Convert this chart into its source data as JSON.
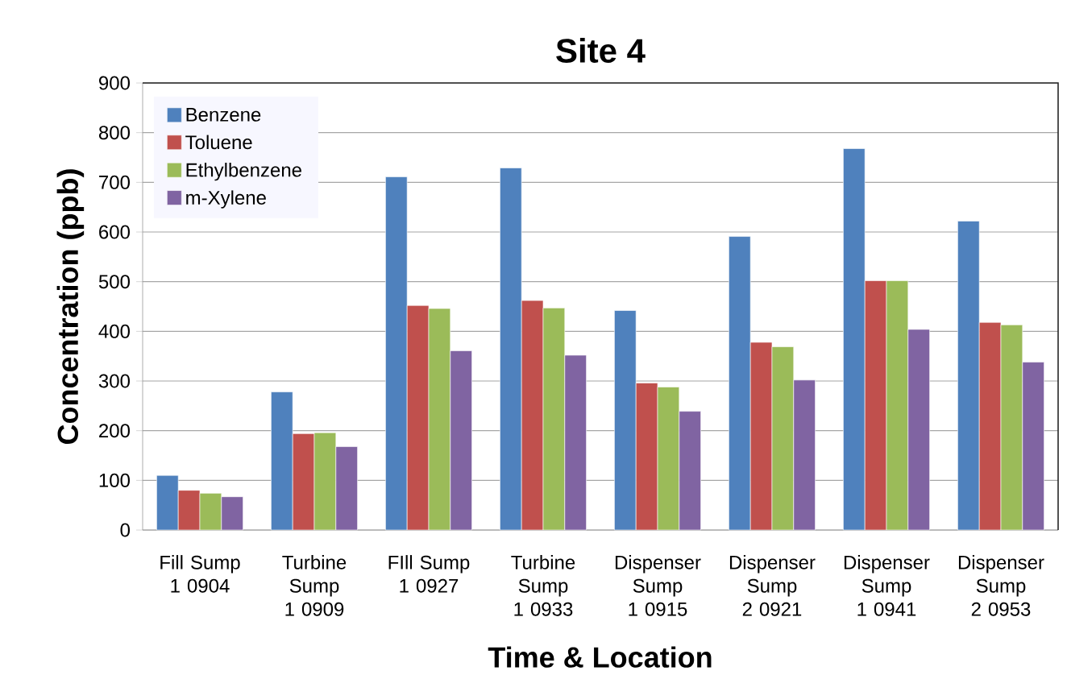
{
  "chart_data": {
    "type": "bar",
    "title": "Site 4",
    "xlabel": "Time & Location",
    "ylabel": "Concentration (ppb)",
    "categories": [
      "Fill Sump 1 0904",
      "Turbine Sump 1 0909",
      "FIll Sump 1 0927",
      "Turbine Sump 1 0933",
      "Dispenser Sump 1 0915",
      "Dispenser Sump 2 0921",
      "Dispenser Sump 1 0941",
      "Dispenser Sump 2 0953"
    ],
    "series": [
      {
        "name": "Benzene",
        "color": "#4f81bd",
        "values": [
          110,
          278,
          711,
          729,
          442,
          591,
          768,
          622
        ]
      },
      {
        "name": "Toluene",
        "color": "#c0504d",
        "values": [
          80,
          194,
          452,
          462,
          296,
          378,
          502,
          418
        ]
      },
      {
        "name": "Ethylbenzene",
        "color": "#9bbb59",
        "values": [
          74,
          196,
          446,
          447,
          288,
          369,
          502,
          413
        ]
      },
      {
        "name": "m-Xylene",
        "color": "#8064a2",
        "values": [
          67,
          168,
          361,
          352,
          239,
          302,
          404,
          338
        ]
      }
    ],
    "ylim": [
      0,
      900
    ],
    "yticks": [
      0,
      100,
      200,
      300,
      400,
      500,
      600,
      700,
      800,
      900
    ],
    "grid": "y",
    "legend": "top left"
  }
}
